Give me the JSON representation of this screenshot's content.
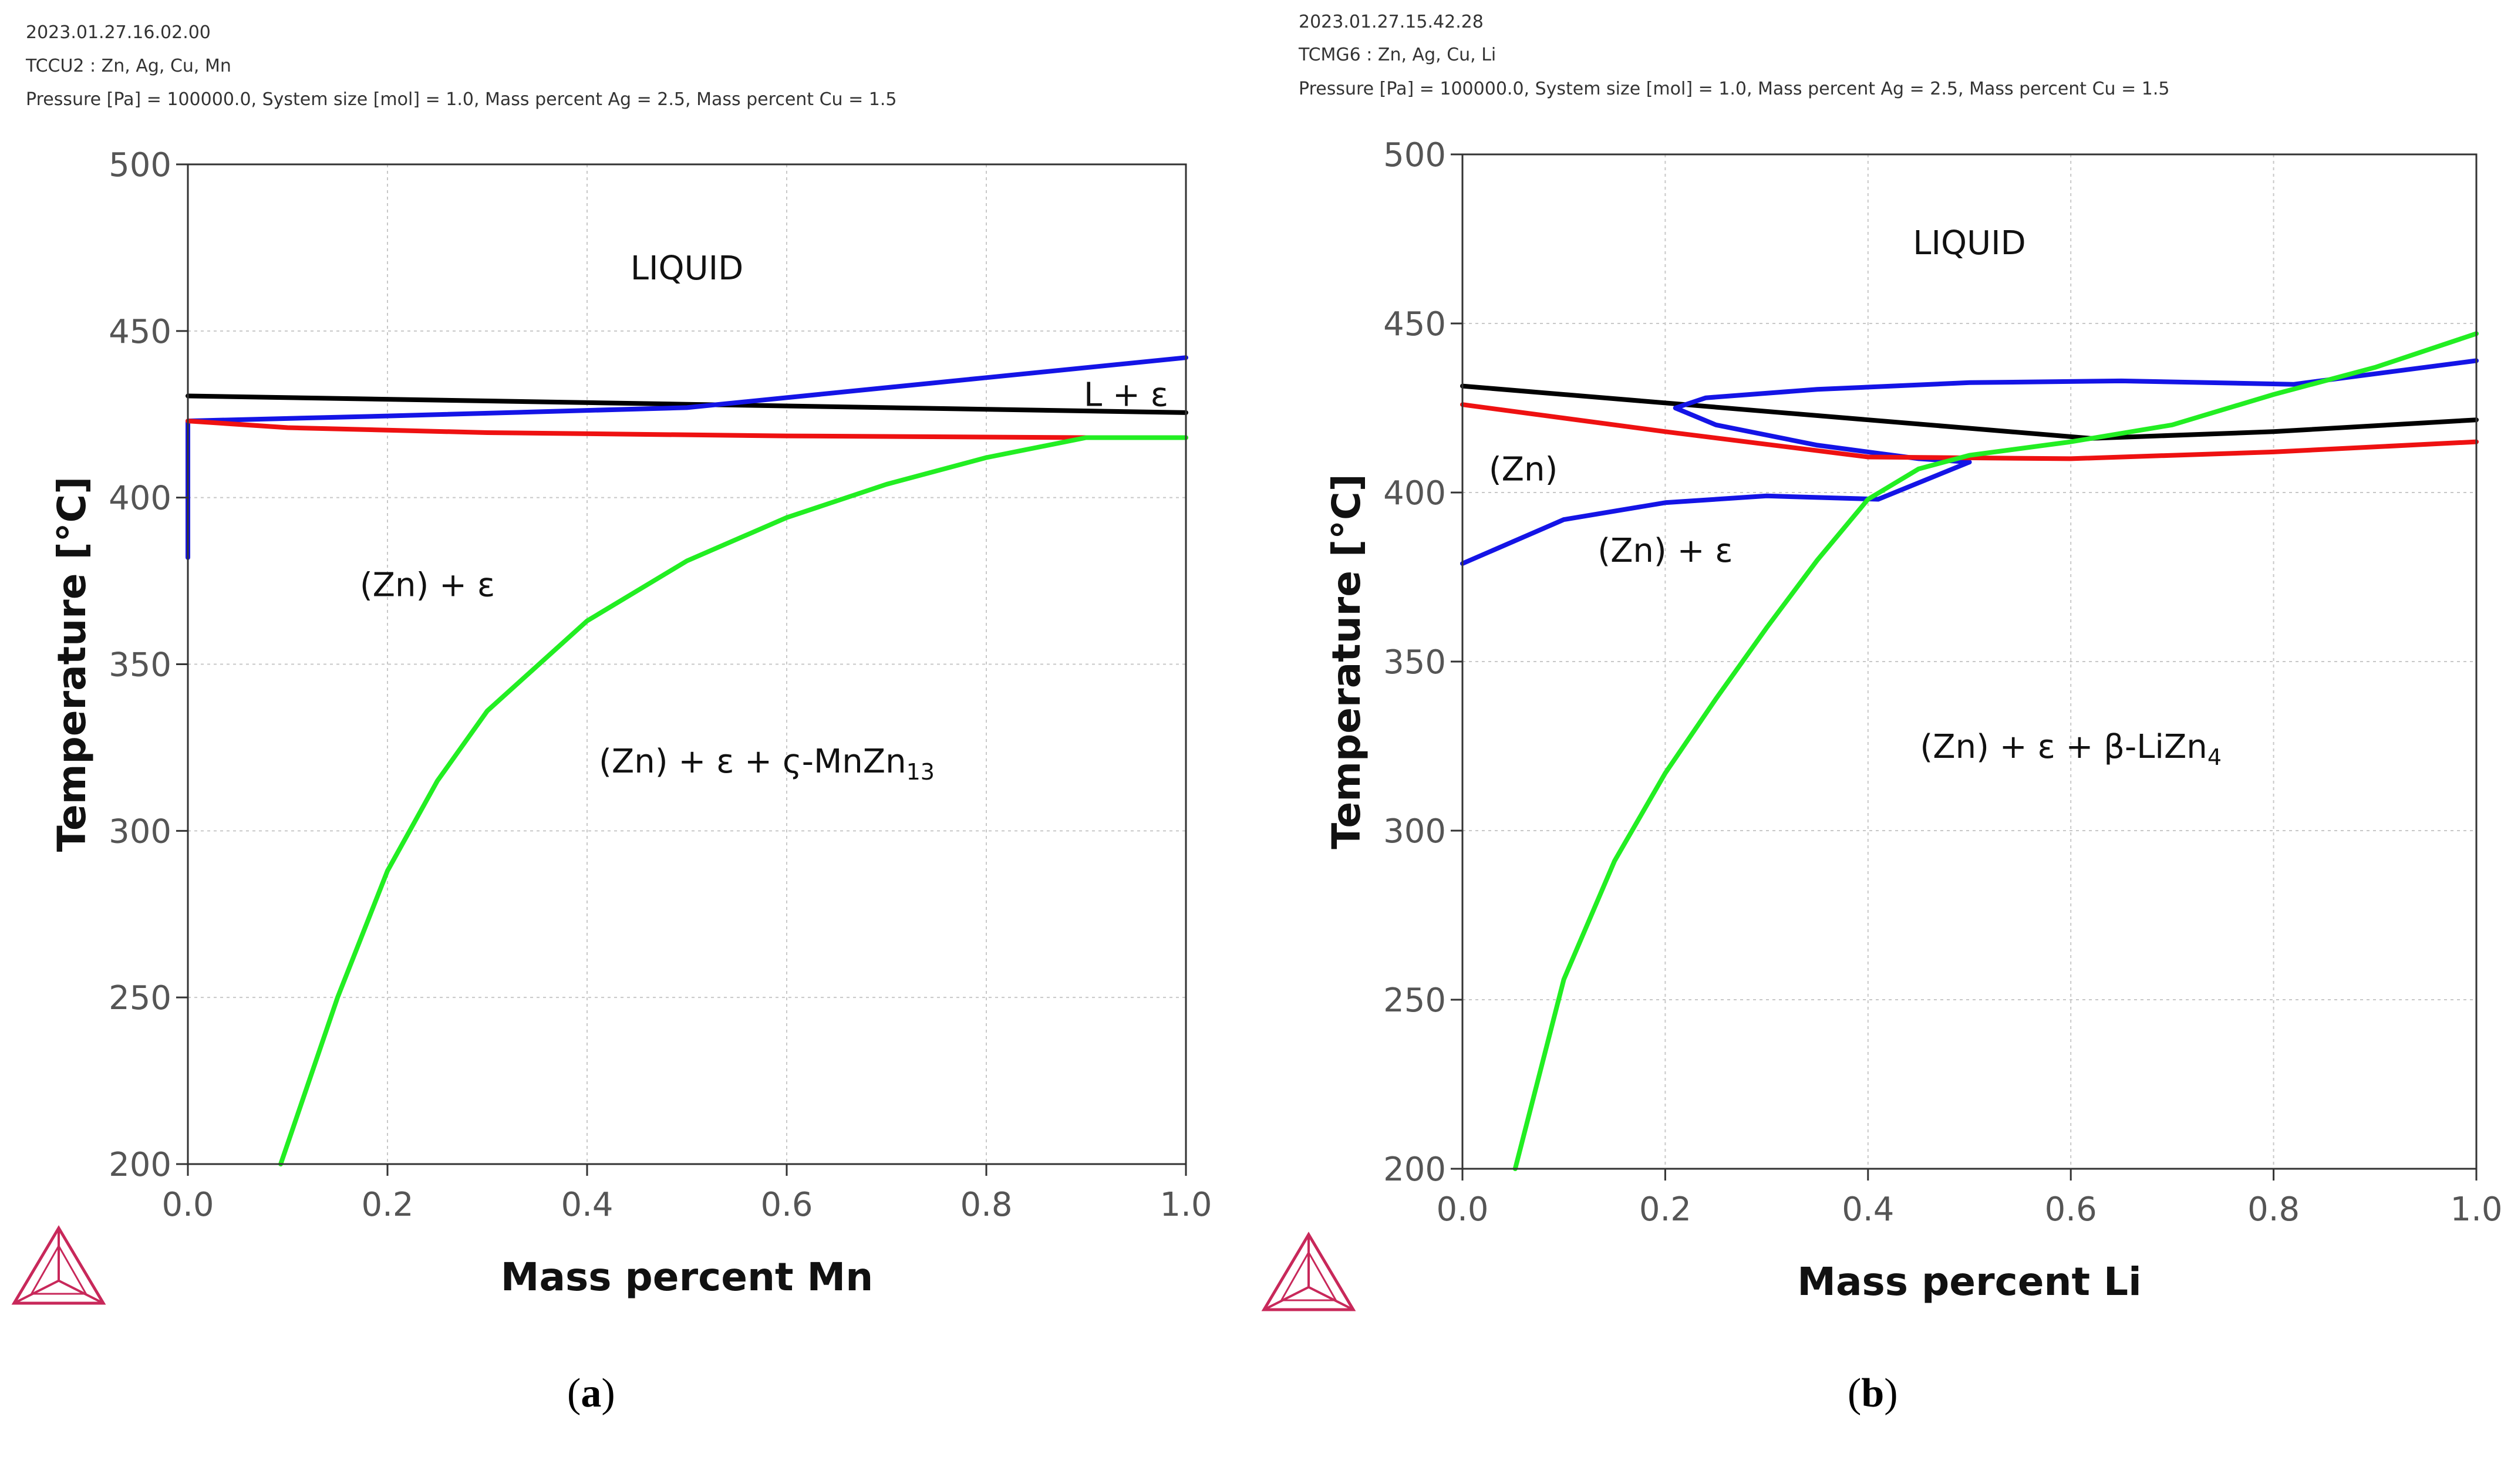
{
  "figure": {
    "panels": [
      {
        "id": "a",
        "timestamp": "2023.01.27.16.02.00",
        "database": "TCCU2 : Zn, Ag, Cu, Mn",
        "conditions": "Pressure [Pa] = 100000.0, System size [mol] = 1.0, Mass percent Ag = 2.5, Mass percent Cu = 1.5",
        "label": {
          "open": "(",
          "letter": "a",
          "close": ")"
        }
      },
      {
        "id": "b",
        "timestamp": "2023.01.27.15.42.28",
        "database": "TCMG6 : Zn, Ag, Cu, Li",
        "conditions": "Pressure [Pa] = 100000.0, System size [mol] = 1.0, Mass percent Ag = 2.5, Mass percent Cu = 1.5",
        "label": {
          "open": "(",
          "letter": "b",
          "close": ")"
        }
      }
    ]
  },
  "colors": {
    "black": "#000000",
    "blue": "#1414e6",
    "red": "#ee1111",
    "green": "#22ee22",
    "grid": "#c8c8c8",
    "logo": "#c8285a"
  },
  "chart_data": [
    {
      "type": "line",
      "title": "",
      "xlabel": "Mass percent Mn",
      "ylabel": "Temperature [°C]",
      "xlim": [
        0,
        1.0
      ],
      "ylim": [
        200,
        500
      ],
      "xticks": [
        "0.0",
        "0.2",
        "0.4",
        "0.6",
        "0.8",
        "1.0"
      ],
      "yticks": [
        "200",
        "250",
        "300",
        "350",
        "400",
        "450",
        "500"
      ],
      "grid": true,
      "series": [
        {
          "name": "black",
          "color": "#000000",
          "x": [
            0.0,
            0.5,
            1.0
          ],
          "y": [
            430.5,
            428.0,
            425.5
          ]
        },
        {
          "name": "blue",
          "color": "#1414e6",
          "x": [
            0.0,
            0.0,
            0.2,
            0.5,
            0.8,
            1.0
          ],
          "y": [
            382,
            423,
            424.5,
            427,
            436,
            442
          ]
        },
        {
          "name": "red",
          "color": "#ee1111",
          "x": [
            0.0,
            0.1,
            0.3,
            0.6,
            0.9,
            1.0
          ],
          "y": [
            423,
            421,
            419.5,
            418.5,
            418,
            418
          ]
        },
        {
          "name": "green",
          "color": "#22ee22",
          "x": [
            0.093,
            0.15,
            0.2,
            0.25,
            0.3,
            0.4,
            0.5,
            0.6,
            0.7,
            0.8,
            0.9,
            1.0
          ],
          "y": [
            200,
            250,
            288,
            315,
            336,
            363,
            381,
            394,
            404,
            412,
            418,
            418
          ]
        }
      ],
      "annotations": [
        {
          "text": "LIQUID",
          "x": 0.5,
          "y": 469
        },
        {
          "text": "L + ε",
          "x": 0.94,
          "y": 431
        },
        {
          "text": "(Zn) + ε",
          "x": 0.24,
          "y": 374
        },
        {
          "text": "(Zn) + ε + ς-MnZn",
          "sub": "13",
          "x": 0.58,
          "y": 321
        }
      ]
    },
    {
      "type": "line",
      "title": "",
      "xlabel": "Mass percent Li",
      "ylabel": "Temperature [°C]",
      "xlim": [
        0,
        1.0
      ],
      "ylim": [
        200,
        500
      ],
      "xticks": [
        "0.0",
        "0.2",
        "0.4",
        "0.6",
        "0.8",
        "1.0"
      ],
      "yticks": [
        "200",
        "250",
        "300",
        "350",
        "400",
        "450",
        "500"
      ],
      "grid": true,
      "series": [
        {
          "name": "black",
          "color": "#000000",
          "x": [
            0.0,
            0.3,
            0.62,
            0.8,
            1.0
          ],
          "y": [
            431.5,
            424.0,
            416.0,
            418.0,
            421.5
          ]
        },
        {
          "name": "blue-lower",
          "color": "#1414e6",
          "x": [
            0.0,
            0.1,
            0.2,
            0.3,
            0.41,
            0.5
          ],
          "y": [
            379,
            392,
            397,
            399,
            398,
            409
          ]
        },
        {
          "name": "blue-loop",
          "color": "#1414e6",
          "x": [
            0.5,
            0.45,
            0.35,
            0.25,
            0.21,
            0.24,
            0.35,
            0.5,
            0.65,
            0.82,
            1.0
          ],
          "y": [
            409,
            410,
            414,
            420,
            425,
            428,
            430.5,
            432.5,
            433,
            432,
            439
          ]
        },
        {
          "name": "red",
          "color": "#ee1111",
          "x": [
            0.0,
            0.2,
            0.4,
            0.6,
            0.8,
            1.0
          ],
          "y": [
            426,
            418,
            410.5,
            410,
            412,
            415
          ]
        },
        {
          "name": "green",
          "color": "#22ee22",
          "x": [
            0.052,
            0.1,
            0.15,
            0.2,
            0.25,
            0.3,
            0.35,
            0.4,
            0.45,
            0.5,
            0.6,
            0.7,
            0.8,
            0.9,
            1.0
          ],
          "y": [
            200,
            256,
            291,
            317,
            339,
            360,
            380,
            398,
            407,
            411,
            415,
            420,
            429,
            437,
            447
          ]
        }
      ],
      "annotations": [
        {
          "text": "LIQUID",
          "x": 0.5,
          "y": 474
        },
        {
          "text": "(Zn)",
          "x": 0.06,
          "y": 407
        },
        {
          "text": "(Zn) + ε",
          "x": 0.2,
          "y": 383
        },
        {
          "text": "(Zn) + ε + β-LiZn",
          "sub": "4",
          "x": 0.6,
          "y": 325
        }
      ]
    }
  ]
}
